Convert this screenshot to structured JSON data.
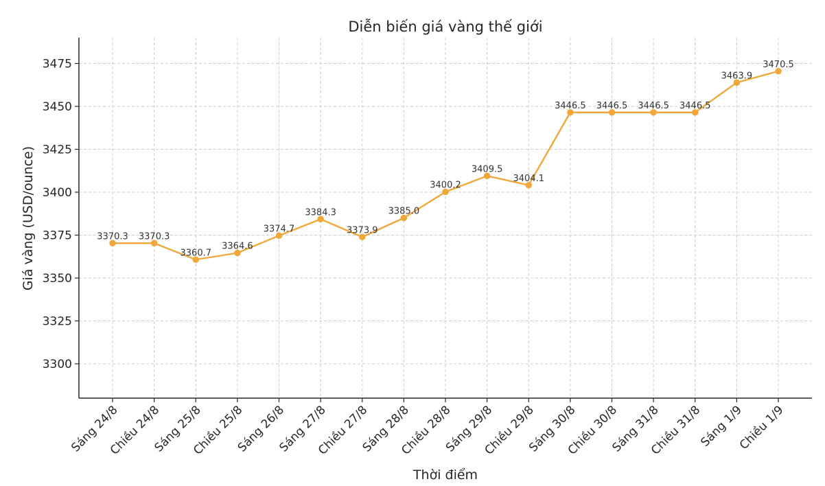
{
  "chart_data": {
    "type": "line",
    "title": "Diễn biến giá vàng thế giới",
    "xlabel": "Thời điểm",
    "ylabel": "Giá vàng (USD/ounce)",
    "categories": [
      "Sáng 24/8",
      "Chiều 24/8",
      "Sáng 25/8",
      "Chiều 25/8",
      "Sáng 26/8",
      "Sáng 27/8",
      "Chiều 27/8",
      "Sáng 28/8",
      "Chiều 28/8",
      "Sáng 29/8",
      "Chiều 29/8",
      "Sáng 30/8",
      "Chiều 30/8",
      "Sáng 31/8",
      "Chiều 31/8",
      "Sáng 1/9",
      "Chiều 1/9"
    ],
    "values": [
      3370.3,
      3370.3,
      3360.7,
      3364.6,
      3374.7,
      3384.3,
      3373.9,
      3385.0,
      3400.2,
      3409.5,
      3404.1,
      3446.5,
      3446.5,
      3446.5,
      3446.5,
      3463.9,
      3470.5
    ],
    "data_labels": [
      "3370.3",
      "3370.3",
      "3360.7",
      "3364.6",
      "3374.7",
      "3384.3",
      "3373.9",
      "3385.0",
      "3400.2",
      "3409.5",
      "3404.1",
      "3446.5",
      "3446.5",
      "3446.5",
      "3446.5",
      "3463.9",
      "3470.5"
    ],
    "yticks": [
      3300,
      3325,
      3350,
      3375,
      3400,
      3425,
      3450,
      3475
    ],
    "ylim": [
      3280,
      3490
    ],
    "grid": true,
    "line_color": "#f0a83a",
    "marker_color": "#f0a83a"
  }
}
